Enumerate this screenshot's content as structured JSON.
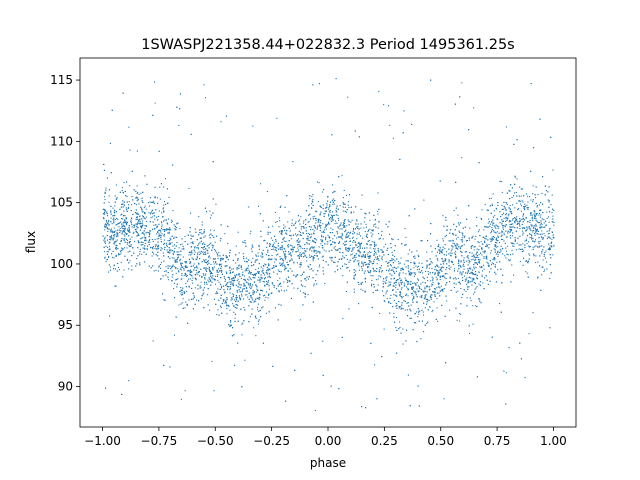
{
  "chart_data": {
    "type": "scatter",
    "title": "1SWASPJ221358.44+022832.3 Period 1495361.25s",
    "xlabel": "phase",
    "ylabel": "flux",
    "xlim": [
      -1.1,
      1.1
    ],
    "ylim": [
      86.7,
      116.8
    ],
    "x_ticks": [
      -1.0,
      -0.75,
      -0.5,
      -0.25,
      0.0,
      0.25,
      0.5,
      0.75,
      1.0
    ],
    "x_tick_labels": [
      "−1.00",
      "−0.75",
      "−0.50",
      "−0.25",
      "0.00",
      "0.25",
      "0.50",
      "0.75",
      "1.00"
    ],
    "y_ticks": [
      90,
      95,
      100,
      105,
      110,
      115
    ],
    "y_tick_labels": [
      "90",
      "95",
      "100",
      "105",
      "110",
      "115"
    ],
    "grid": false,
    "point_color": "#1f77b4",
    "phase_profile": {
      "x": [
        0.0,
        0.05,
        0.1,
        0.15,
        0.2,
        0.25,
        0.3,
        0.35,
        0.4,
        0.45,
        0.5,
        0.55,
        0.6,
        0.65,
        0.7,
        0.75,
        0.8,
        0.85,
        0.9,
        0.95,
        1.0
      ],
      "median_flux": [
        103.0,
        102.5,
        101.5,
        101.0,
        101.0,
        100.0,
        98.5,
        99.0,
        98.0,
        98.5,
        99.5,
        100.5,
        100.0,
        99.5,
        101.5,
        102.5,
        103.0,
        103.5,
        103.0,
        102.5,
        103.0
      ],
      "scatter": 1.7,
      "outlier_range": [
        88,
        115.5
      ]
    }
  }
}
